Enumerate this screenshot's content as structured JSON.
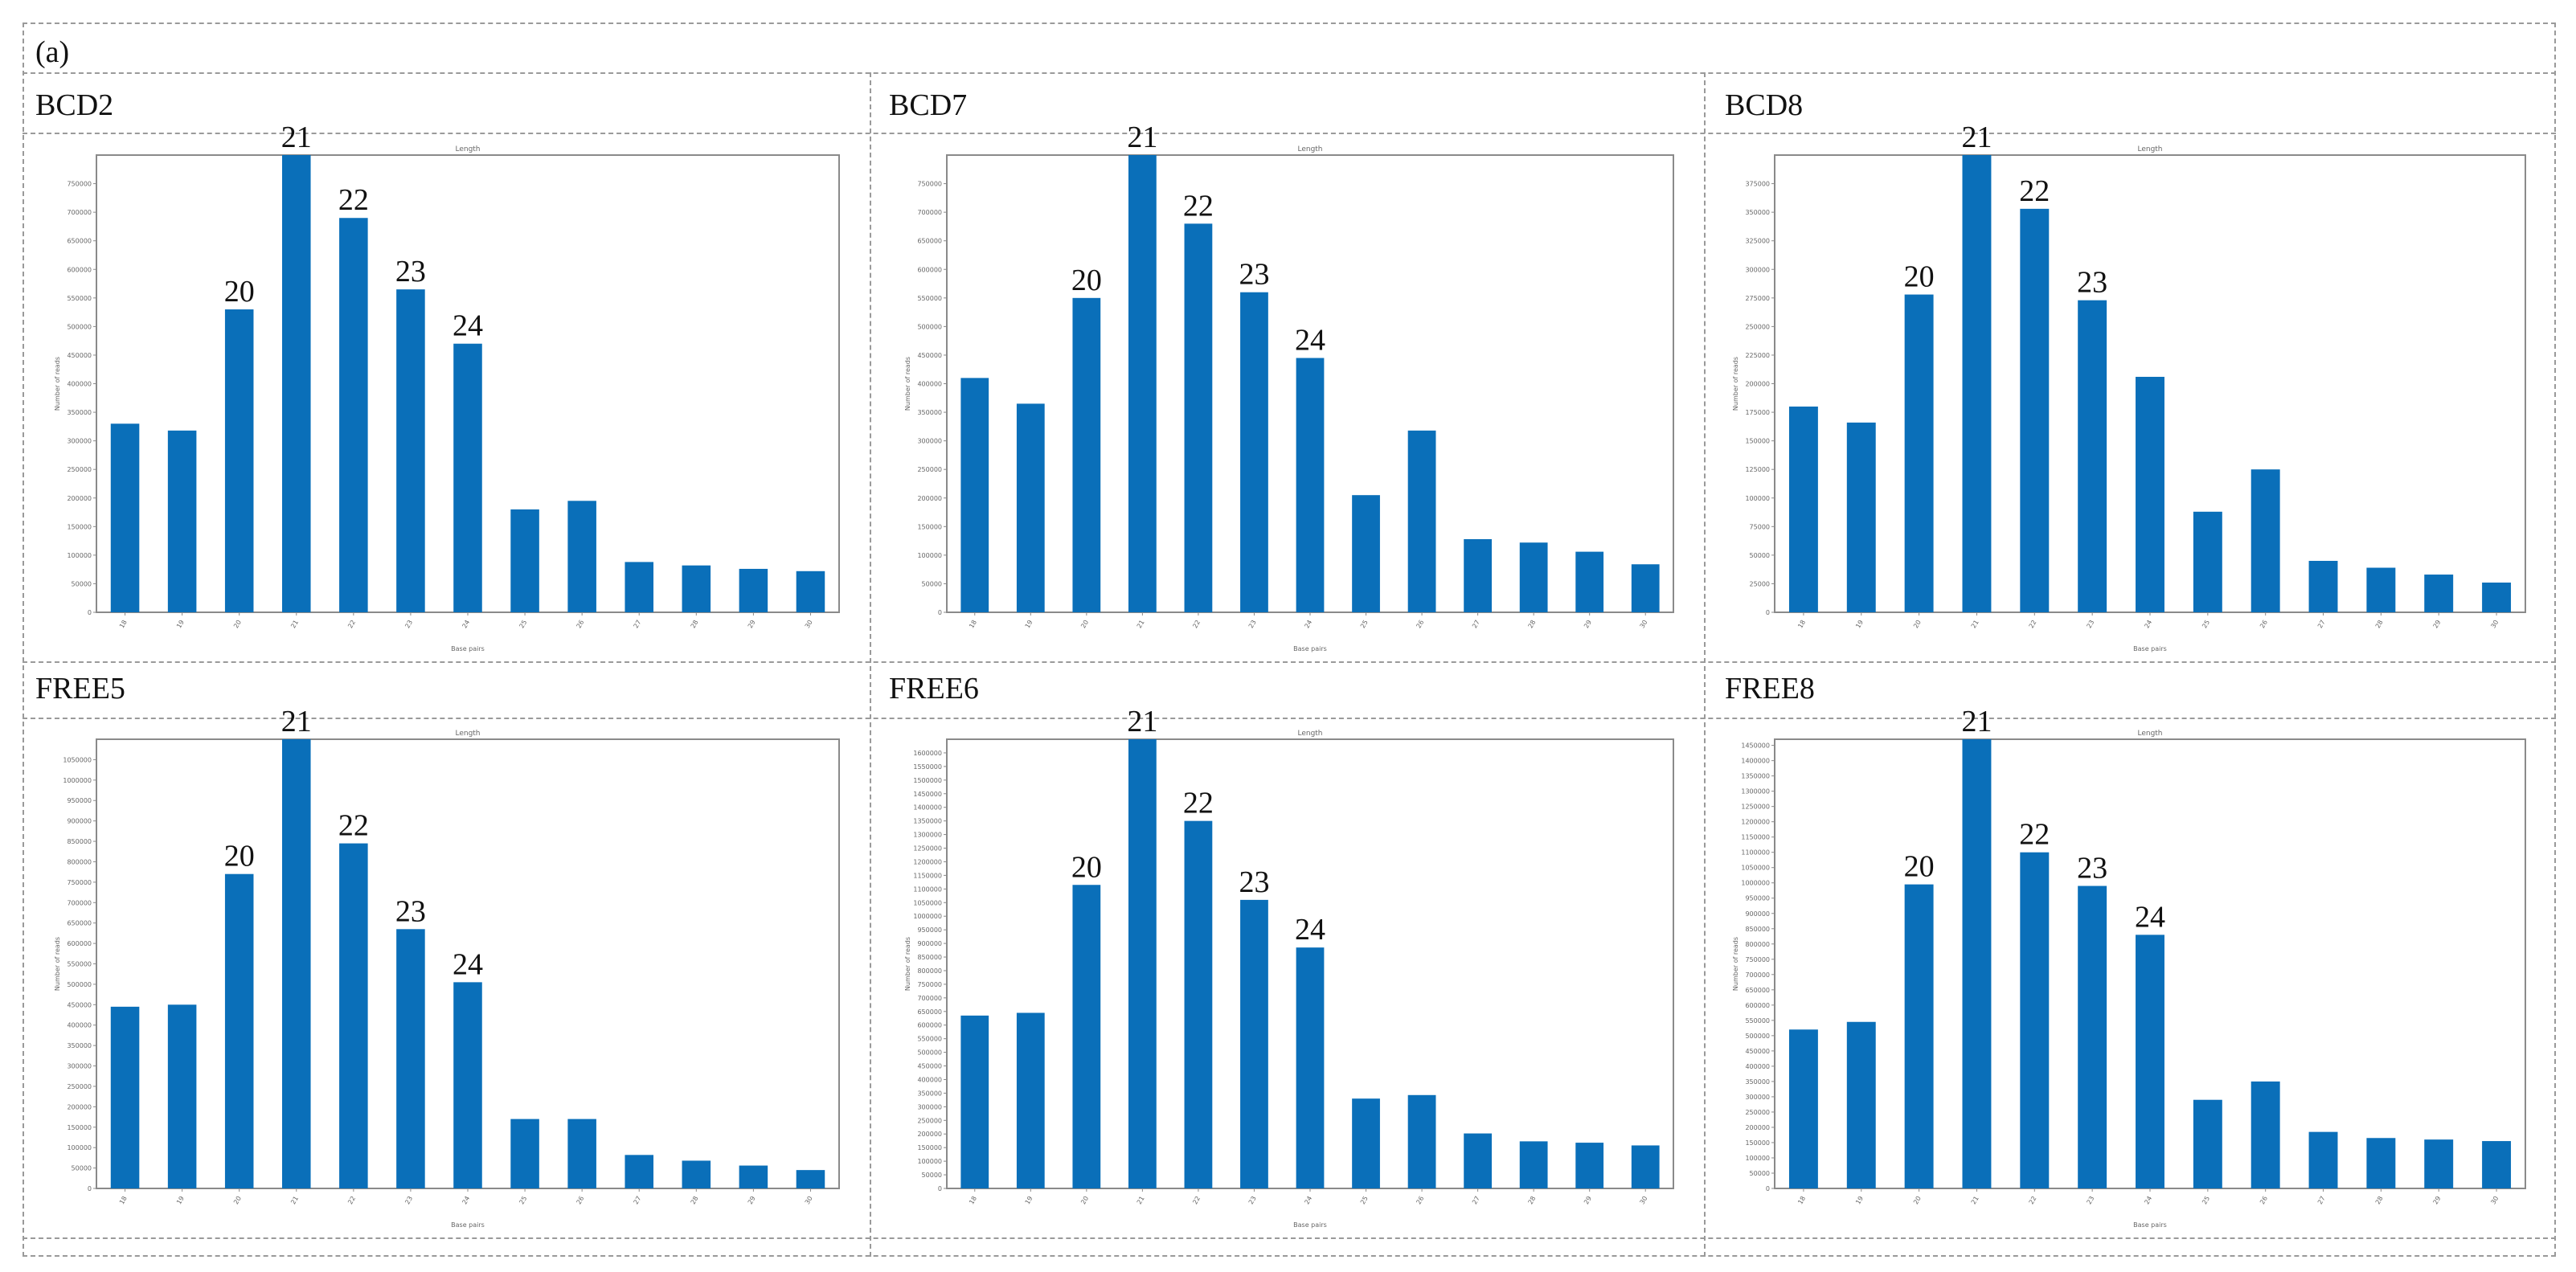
{
  "figure_label": "(a)",
  "chart_data": [
    {
      "type": "bar",
      "panel": "BCD2",
      "title": "Length",
      "xlabel": "Base pairs",
      "ylabel": "Number of reads",
      "categories": [
        "18",
        "19",
        "20",
        "21",
        "22",
        "23",
        "24",
        "25",
        "26",
        "27",
        "28",
        "29",
        "30"
      ],
      "values": [
        330000,
        318000,
        530000,
        800000,
        690000,
        565000,
        470000,
        180000,
        195000,
        88000,
        82000,
        76000,
        72000
      ],
      "bar_labels": {
        "2": "20",
        "3": "21",
        "4": "22",
        "5": "23",
        "6": "24"
      },
      "ylim": [
        0,
        800000
      ],
      "yticks": [
        0,
        50000,
        100000,
        150000,
        200000,
        250000,
        300000,
        350000,
        400000,
        450000,
        500000,
        550000,
        600000,
        650000,
        700000,
        750000
      ],
      "ytick_labels": [
        "0",
        "50000",
        "100000",
        "150000",
        "200000",
        "250000",
        "300000",
        "350000",
        "400000",
        "450000",
        "500000",
        "550000",
        "600000",
        "650000",
        "700000",
        "750000"
      ]
    },
    {
      "type": "bar",
      "panel": "BCD7",
      "title": "Length",
      "xlabel": "Base pairs",
      "ylabel": "Number of reads",
      "categories": [
        "18",
        "19",
        "20",
        "21",
        "22",
        "23",
        "24",
        "25",
        "26",
        "27",
        "28",
        "29",
        "30"
      ],
      "values": [
        410000,
        365000,
        550000,
        800000,
        680000,
        560000,
        445000,
        205000,
        318000,
        128000,
        122000,
        106000,
        84000
      ],
      "bar_labels": {
        "2": "20",
        "3": "21",
        "4": "22",
        "5": "23",
        "6": "24"
      },
      "ylim": [
        0,
        800000
      ],
      "yticks": [
        0,
        50000,
        100000,
        150000,
        200000,
        250000,
        300000,
        350000,
        400000,
        450000,
        500000,
        550000,
        600000,
        650000,
        700000,
        750000
      ],
      "ytick_labels": [
        "0",
        "50000",
        "100000",
        "150000",
        "200000",
        "250000",
        "300000",
        "350000",
        "400000",
        "450000",
        "500000",
        "550000",
        "600000",
        "650000",
        "700000",
        "750000"
      ]
    },
    {
      "type": "bar",
      "panel": "BCD8",
      "title": "Length",
      "xlabel": "Base pairs",
      "ylabel": "Number of reads",
      "categories": [
        "18",
        "19",
        "20",
        "21",
        "22",
        "23",
        "24",
        "25",
        "26",
        "27",
        "28",
        "29",
        "30"
      ],
      "values": [
        180000,
        166000,
        278000,
        400000,
        353000,
        273000,
        206000,
        88000,
        125000,
        45000,
        39000,
        33000,
        26000
      ],
      "bar_labels": {
        "2": "20",
        "3": "21",
        "4": "22",
        "5": "23"
      },
      "ylim": [
        0,
        400000
      ],
      "yticks": [
        0,
        25000,
        50000,
        75000,
        100000,
        125000,
        150000,
        175000,
        200000,
        225000,
        250000,
        275000,
        300000,
        325000,
        350000,
        375000
      ],
      "ytick_labels": [
        "0",
        "25000",
        "50000",
        "75000",
        "100000",
        "125000",
        "150000",
        "175000",
        "200000",
        "225000",
        "250000",
        "275000",
        "300000",
        "325000",
        "350000",
        "375000"
      ]
    },
    {
      "type": "bar",
      "panel": "FREE5",
      "title": "Length",
      "xlabel": "Base pairs",
      "ylabel": "Number of reads",
      "categories": [
        "18",
        "19",
        "20",
        "21",
        "22",
        "23",
        "24",
        "25",
        "26",
        "27",
        "28",
        "29",
        "30"
      ],
      "values": [
        445000,
        450000,
        770000,
        1100000,
        845000,
        635000,
        505000,
        170000,
        170000,
        82000,
        68000,
        56000,
        45000
      ],
      "bar_labels": {
        "2": "20",
        "3": "21",
        "4": "22",
        "5": "23",
        "6": "24"
      },
      "ylim": [
        0,
        1100000
      ],
      "yticks": [
        0,
        50000,
        100000,
        150000,
        200000,
        250000,
        300000,
        350000,
        400000,
        450000,
        500000,
        550000,
        600000,
        650000,
        700000,
        750000,
        800000,
        850000,
        900000,
        950000,
        1000000,
        1050000
      ],
      "ytick_labels": [
        "0",
        "50000",
        "100000",
        "150000",
        "200000",
        "250000",
        "300000",
        "350000",
        "400000",
        "450000",
        "500000",
        "550000",
        "600000",
        "650000",
        "700000",
        "750000",
        "800000",
        "850000",
        "900000",
        "950000",
        "1000000",
        "1050000"
      ]
    },
    {
      "type": "bar",
      "panel": "FREE6",
      "title": "Length",
      "xlabel": "Base pairs",
      "ylabel": "Number of reads",
      "categories": [
        "18",
        "19",
        "20",
        "21",
        "22",
        "23",
        "24",
        "25",
        "26",
        "27",
        "28",
        "29",
        "30"
      ],
      "values": [
        635000,
        645000,
        1115000,
        1650000,
        1350000,
        1060000,
        885000,
        330000,
        343000,
        202000,
        173000,
        168000,
        158000
      ],
      "bar_labels": {
        "2": "20",
        "3": "21",
        "4": "22",
        "5": "23",
        "6": "24"
      },
      "ylim": [
        0,
        1650000
      ],
      "yticks": [
        0,
        50000,
        100000,
        150000,
        200000,
        250000,
        300000,
        350000,
        400000,
        450000,
        500000,
        550000,
        600000,
        650000,
        700000,
        750000,
        800000,
        850000,
        900000,
        950000,
        1000000,
        1050000,
        1100000,
        1150000,
        1200000,
        1250000,
        1300000,
        1350000,
        1400000,
        1450000,
        1500000,
        1550000,
        1600000
      ],
      "ytick_labels": [
        "0",
        "50000",
        "100000",
        "150000",
        "200000",
        "250000",
        "300000",
        "350000",
        "400000",
        "450000",
        "500000",
        "550000",
        "600000",
        "650000",
        "700000",
        "750000",
        "800000",
        "850000",
        "900000",
        "950000",
        "1000000",
        "1050000",
        "1100000",
        "1150000",
        "1200000",
        "1250000",
        "1300000",
        "1350000",
        "1400000",
        "1450000",
        "1500000",
        "1550000",
        "1600000"
      ]
    },
    {
      "type": "bar",
      "panel": "FREE8",
      "title": "Length",
      "xlabel": "Base pairs",
      "ylabel": "Number of reads",
      "categories": [
        "18",
        "19",
        "20",
        "21",
        "22",
        "23",
        "24",
        "25",
        "26",
        "27",
        "28",
        "29",
        "30"
      ],
      "values": [
        520000,
        545000,
        995000,
        1470000,
        1100000,
        990000,
        830000,
        290000,
        350000,
        185000,
        165000,
        160000,
        155000
      ],
      "bar_labels": {
        "2": "20",
        "3": "21",
        "4": "22",
        "5": "23",
        "6": "24"
      },
      "ylim": [
        0,
        1470000
      ],
      "yticks": [
        0,
        50000,
        100000,
        150000,
        200000,
        250000,
        300000,
        350000,
        400000,
        450000,
        500000,
        550000,
        600000,
        650000,
        700000,
        750000,
        800000,
        850000,
        900000,
        950000,
        1000000,
        1050000,
        1100000,
        1150000,
        1200000,
        1250000,
        1300000,
        1350000,
        1400000,
        1450000
      ],
      "ytick_labels": [
        "0",
        "50000",
        "100000",
        "150000",
        "200000",
        "250000",
        "300000",
        "350000",
        "400000",
        "450000",
        "500000",
        "550000",
        "600000",
        "650000",
        "700000",
        "750000",
        "800000",
        "850000",
        "900000",
        "950000",
        "1000000",
        "1050000",
        "1100000",
        "1150000",
        "1200000",
        "1250000",
        "1300000",
        "1350000",
        "1400000",
        "1450000"
      ]
    }
  ]
}
